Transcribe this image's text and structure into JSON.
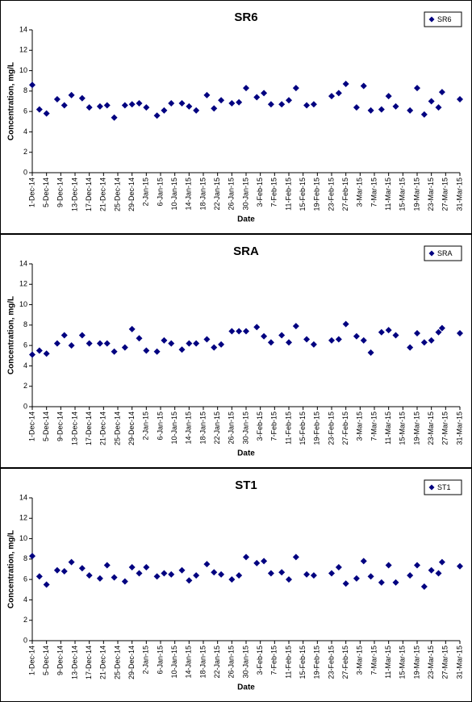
{
  "chart_data": [
    {
      "type": "scatter",
      "title": "SR6",
      "xlabel": "Date",
      "ylabel": "Concentration, mg/L",
      "legend": "upper right",
      "x": [
        "2014-12-01",
        "2014-12-03",
        "2014-12-05",
        "2014-12-08",
        "2014-12-10",
        "2014-12-12",
        "2014-12-15",
        "2014-12-17",
        "2014-12-20",
        "2014-12-22",
        "2014-12-24",
        "2014-12-27",
        "2014-12-29",
        "2014-12-31",
        "2015-01-02",
        "2015-01-05",
        "2015-01-07",
        "2015-01-09",
        "2015-01-12",
        "2015-01-14",
        "2015-01-16",
        "2015-01-19",
        "2015-01-21",
        "2015-01-23",
        "2015-01-26",
        "2015-01-28",
        "2015-01-30",
        "2015-02-02",
        "2015-02-04",
        "2015-02-06",
        "2015-02-09",
        "2015-02-11",
        "2015-02-13",
        "2015-02-16",
        "2015-02-18",
        "2015-02-23",
        "2015-02-25",
        "2015-02-27",
        "2015-03-02",
        "2015-03-04",
        "2015-03-06",
        "2015-03-09",
        "2015-03-11",
        "2015-03-13",
        "2015-03-17",
        "2015-03-19",
        "2015-03-21",
        "2015-03-23",
        "2015-03-25",
        "2015-03-26",
        "2015-03-31"
      ],
      "series": [
        {
          "name": "SR6",
          "color": "#000080",
          "values": [
            8.6,
            6.2,
            5.8,
            7.2,
            6.6,
            7.6,
            7.3,
            6.4,
            6.5,
            6.6,
            5.4,
            6.6,
            6.7,
            6.8,
            6.4,
            5.6,
            6.1,
            6.8,
            6.8,
            6.5,
            6.1,
            7.6,
            6.3,
            7.1,
            6.8,
            6.9,
            8.3,
            7.4,
            7.8,
            6.7,
            6.7,
            7.1,
            8.3,
            6.6,
            6.7,
            7.5,
            7.8,
            8.7,
            6.4,
            8.5,
            6.1,
            6.2,
            7.5,
            6.5,
            6.1,
            8.3,
            5.7,
            7.0,
            6.4,
            7.9,
            7.2
          ]
        }
      ],
      "ylim": [
        0,
        14
      ],
      "yticks": [
        0,
        2,
        4,
        6,
        8,
        10,
        12,
        14
      ],
      "xlim": [
        "2014-12-01",
        "2015-03-31"
      ],
      "xticks": [
        {
          "value": "2014-12-01",
          "label": "1-Dec-14"
        },
        {
          "value": "2014-12-05",
          "label": "5-Dec-14"
        },
        {
          "value": "2014-12-09",
          "label": "9-Dec-14"
        },
        {
          "value": "2014-12-13",
          "label": "13-Dec-14"
        },
        {
          "value": "2014-12-17",
          "label": "17-Dec-14"
        },
        {
          "value": "2014-12-21",
          "label": "21-Dec-14"
        },
        {
          "value": "2014-12-25",
          "label": "25-Dec-14"
        },
        {
          "value": "2014-12-29",
          "label": "29-Dec-14"
        },
        {
          "value": "2015-01-02",
          "label": "2-Jan-15"
        },
        {
          "value": "2015-01-06",
          "label": "6-Jan-15"
        },
        {
          "value": "2015-01-10",
          "label": "10-Jan-15"
        },
        {
          "value": "2015-01-14",
          "label": "14-Jan-15"
        },
        {
          "value": "2015-01-18",
          "label": "18-Jan-15"
        },
        {
          "value": "2015-01-22",
          "label": "22-Jan-15"
        },
        {
          "value": "2015-01-26",
          "label": "26-Jan-15"
        },
        {
          "value": "2015-01-30",
          "label": "30-Jan-15"
        },
        {
          "value": "2015-02-03",
          "label": "3-Feb-15"
        },
        {
          "value": "2015-02-07",
          "label": "7-Feb-15"
        },
        {
          "value": "2015-02-11",
          "label": "11-Feb-15"
        },
        {
          "value": "2015-02-15",
          "label": "15-Feb-15"
        },
        {
          "value": "2015-02-19",
          "label": "19-Feb-15"
        },
        {
          "value": "2015-02-23",
          "label": "23-Feb-15"
        },
        {
          "value": "2015-02-27",
          "label": "27-Feb-15"
        },
        {
          "value": "2015-03-03",
          "label": "3-Mar-15"
        },
        {
          "value": "2015-03-07",
          "label": "7-Mar-15"
        },
        {
          "value": "2015-03-11",
          "label": "11-Mar-15"
        },
        {
          "value": "2015-03-15",
          "label": "15-Mar-15"
        },
        {
          "value": "2015-03-19",
          "label": "19-Mar-15"
        },
        {
          "value": "2015-03-23",
          "label": "23-Mar-15"
        },
        {
          "value": "2015-03-27",
          "label": "27-Mar-15"
        },
        {
          "value": "2015-03-31",
          "label": "31-Mar-15"
        }
      ]
    },
    {
      "type": "scatter",
      "title": "SRA",
      "xlabel": "Date",
      "ylabel": "Concentration, mg/L",
      "legend": "upper right",
      "x": [
        "2014-12-01",
        "2014-12-03",
        "2014-12-05",
        "2014-12-08",
        "2014-12-10",
        "2014-12-12",
        "2014-12-15",
        "2014-12-17",
        "2014-12-20",
        "2014-12-22",
        "2014-12-24",
        "2014-12-27",
        "2014-12-29",
        "2014-12-31",
        "2015-01-02",
        "2015-01-05",
        "2015-01-07",
        "2015-01-09",
        "2015-01-12",
        "2015-01-14",
        "2015-01-16",
        "2015-01-19",
        "2015-01-21",
        "2015-01-23",
        "2015-01-26",
        "2015-01-28",
        "2015-01-30",
        "2015-02-02",
        "2015-02-04",
        "2015-02-06",
        "2015-02-09",
        "2015-02-11",
        "2015-02-13",
        "2015-02-16",
        "2015-02-18",
        "2015-02-23",
        "2015-02-25",
        "2015-02-27",
        "2015-03-02",
        "2015-03-04",
        "2015-03-06",
        "2015-03-09",
        "2015-03-11",
        "2015-03-13",
        "2015-03-17",
        "2015-03-19",
        "2015-03-21",
        "2015-03-23",
        "2015-03-25",
        "2015-03-26",
        "2015-03-31"
      ],
      "series": [
        {
          "name": "SRA",
          "color": "#000080",
          "values": [
            5.1,
            5.5,
            5.2,
            6.2,
            7.0,
            6.0,
            7.0,
            6.2,
            6.2,
            6.2,
            5.4,
            5.8,
            7.6,
            6.7,
            5.5,
            5.4,
            6.5,
            6.2,
            5.6,
            6.2,
            6.2,
            6.6,
            5.8,
            6.1,
            7.4,
            7.4,
            7.4,
            7.8,
            6.9,
            6.3,
            7.0,
            6.3,
            7.9,
            6.6,
            6.1,
            6.5,
            6.6,
            8.1,
            6.9,
            6.5,
            5.3,
            7.3,
            7.5,
            7.0,
            5.8,
            7.2,
            6.3,
            6.5,
            7.3,
            7.7,
            7.2
          ]
        }
      ],
      "ylim": [
        0,
        14
      ],
      "yticks": [
        0,
        2,
        4,
        6,
        8,
        10,
        12,
        14
      ],
      "xlim": [
        "2014-12-01",
        "2015-03-31"
      ],
      "xticks": [
        {
          "value": "2014-12-01",
          "label": "1-Dec-14"
        },
        {
          "value": "2014-12-05",
          "label": "5-Dec-14"
        },
        {
          "value": "2014-12-09",
          "label": "9-Dec-14"
        },
        {
          "value": "2014-12-13",
          "label": "13-Dec-14"
        },
        {
          "value": "2014-12-17",
          "label": "17-Dec-14"
        },
        {
          "value": "2014-12-21",
          "label": "21-Dec-14"
        },
        {
          "value": "2014-12-25",
          "label": "25-Dec-14"
        },
        {
          "value": "2014-12-29",
          "label": "29-Dec-14"
        },
        {
          "value": "2015-01-02",
          "label": "2-Jan-15"
        },
        {
          "value": "2015-01-06",
          "label": "6-Jan-15"
        },
        {
          "value": "2015-01-10",
          "label": "10-Jan-15"
        },
        {
          "value": "2015-01-14",
          "label": "14-Jan-15"
        },
        {
          "value": "2015-01-18",
          "label": "18-Jan-15"
        },
        {
          "value": "2015-01-22",
          "label": "22-Jan-15"
        },
        {
          "value": "2015-01-26",
          "label": "26-Jan-15"
        },
        {
          "value": "2015-01-30",
          "label": "30-Jan-15"
        },
        {
          "value": "2015-02-03",
          "label": "3-Feb-15"
        },
        {
          "value": "2015-02-07",
          "label": "7-Feb-15"
        },
        {
          "value": "2015-02-11",
          "label": "11-Feb-15"
        },
        {
          "value": "2015-02-15",
          "label": "15-Feb-15"
        },
        {
          "value": "2015-02-19",
          "label": "19-Feb-15"
        },
        {
          "value": "2015-02-23",
          "label": "23-Feb-15"
        },
        {
          "value": "2015-02-27",
          "label": "27-Feb-15"
        },
        {
          "value": "2015-03-03",
          "label": "3-Mar-15"
        },
        {
          "value": "2015-03-07",
          "label": "7-Mar-15"
        },
        {
          "value": "2015-03-11",
          "label": "11-Mar-15"
        },
        {
          "value": "2015-03-15",
          "label": "15-Mar-15"
        },
        {
          "value": "2015-03-19",
          "label": "19-Mar-15"
        },
        {
          "value": "2015-03-23",
          "label": "23-Mar-15"
        },
        {
          "value": "2015-03-27",
          "label": "27-Mar-15"
        },
        {
          "value": "2015-03-31",
          "label": "31-Mar-15"
        }
      ]
    },
    {
      "type": "scatter",
      "title": "ST1",
      "xlabel": "Date",
      "ylabel": "Concentration, mg/L",
      "legend": "upper right",
      "x": [
        "2014-12-01",
        "2014-12-03",
        "2014-12-05",
        "2014-12-08",
        "2014-12-10",
        "2014-12-12",
        "2014-12-15",
        "2014-12-17",
        "2014-12-20",
        "2014-12-22",
        "2014-12-24",
        "2014-12-27",
        "2014-12-29",
        "2014-12-31",
        "2015-01-02",
        "2015-01-05",
        "2015-01-07",
        "2015-01-09",
        "2015-01-12",
        "2015-01-14",
        "2015-01-16",
        "2015-01-19",
        "2015-01-21",
        "2015-01-23",
        "2015-01-26",
        "2015-01-28",
        "2015-01-30",
        "2015-02-02",
        "2015-02-04",
        "2015-02-06",
        "2015-02-09",
        "2015-02-11",
        "2015-02-13",
        "2015-02-16",
        "2015-02-18",
        "2015-02-23",
        "2015-02-25",
        "2015-02-27",
        "2015-03-02",
        "2015-03-04",
        "2015-03-06",
        "2015-03-09",
        "2015-03-11",
        "2015-03-13",
        "2015-03-17",
        "2015-03-19",
        "2015-03-21",
        "2015-03-23",
        "2015-03-25",
        "2015-03-26",
        "2015-03-31"
      ],
      "series": [
        {
          "name": "ST1",
          "color": "#000080",
          "values": [
            8.3,
            6.3,
            5.5,
            6.9,
            6.8,
            7.7,
            7.1,
            6.4,
            6.1,
            7.4,
            6.2,
            5.8,
            7.2,
            6.6,
            7.2,
            6.3,
            6.6,
            6.5,
            6.9,
            5.9,
            6.4,
            7.5,
            6.7,
            6.5,
            6.0,
            6.4,
            8.2,
            7.6,
            7.8,
            6.6,
            6.7,
            6.0,
            8.2,
            6.5,
            6.4,
            6.6,
            7.2,
            5.6,
            6.1,
            7.8,
            6.3,
            5.7,
            7.4,
            5.7,
            6.4,
            7.4,
            5.3,
            6.9,
            6.6,
            7.7,
            7.3
          ]
        }
      ],
      "ylim": [
        0,
        14
      ],
      "yticks": [
        0,
        2,
        4,
        6,
        8,
        10,
        12,
        14
      ],
      "xlim": [
        "2014-12-01",
        "2015-03-31"
      ],
      "xticks": [
        {
          "value": "2014-12-01",
          "label": "1-Dec-14"
        },
        {
          "value": "2014-12-05",
          "label": "5-Dec-14"
        },
        {
          "value": "2014-12-09",
          "label": "9-Dec-14"
        },
        {
          "value": "2014-12-13",
          "label": "13-Dec-14"
        },
        {
          "value": "2014-12-17",
          "label": "17-Dec-14"
        },
        {
          "value": "2014-12-21",
          "label": "21-Dec-14"
        },
        {
          "value": "2014-12-25",
          "label": "25-Dec-14"
        },
        {
          "value": "2014-12-29",
          "label": "29-Dec-14"
        },
        {
          "value": "2015-01-02",
          "label": "2-Jan-15"
        },
        {
          "value": "2015-01-06",
          "label": "6-Jan-15"
        },
        {
          "value": "2015-01-10",
          "label": "10-Jan-15"
        },
        {
          "value": "2015-01-14",
          "label": "14-Jan-15"
        },
        {
          "value": "2015-01-18",
          "label": "18-Jan-15"
        },
        {
          "value": "2015-01-22",
          "label": "22-Jan-15"
        },
        {
          "value": "2015-01-26",
          "label": "26-Jan-15"
        },
        {
          "value": "2015-01-30",
          "label": "30-Jan-15"
        },
        {
          "value": "2015-02-03",
          "label": "3-Feb-15"
        },
        {
          "value": "2015-02-07",
          "label": "7-Feb-15"
        },
        {
          "value": "2015-02-11",
          "label": "11-Feb-15"
        },
        {
          "value": "2015-02-15",
          "label": "15-Feb-15"
        },
        {
          "value": "2015-02-19",
          "label": "19-Feb-15"
        },
        {
          "value": "2015-02-23",
          "label": "23-Feb-15"
        },
        {
          "value": "2015-02-27",
          "label": "27-Feb-15"
        },
        {
          "value": "2015-03-03",
          "label": "3-Mar-15"
        },
        {
          "value": "2015-03-07",
          "label": "7-Mar-15"
        },
        {
          "value": "2015-03-11",
          "label": "11-Mar-15"
        },
        {
          "value": "2015-03-15",
          "label": "15-Mar-15"
        },
        {
          "value": "2015-03-19",
          "label": "19-Mar-15"
        },
        {
          "value": "2015-03-23",
          "label": "23-Mar-15"
        },
        {
          "value": "2015-03-27",
          "label": "27-Mar-15"
        },
        {
          "value": "2015-03-31",
          "label": "31-Mar-15"
        }
      ]
    }
  ]
}
